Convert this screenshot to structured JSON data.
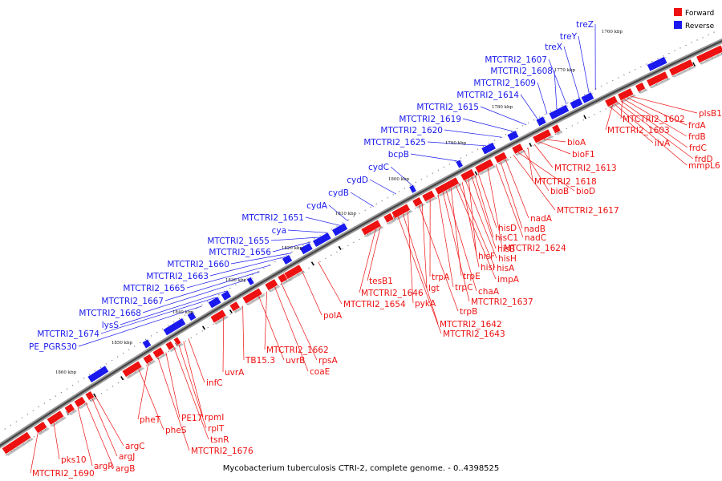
{
  "caption": "Mycobacterium tuberculosis CTRI-2, complete genome. - 0..4398525",
  "legend": [
    {
      "label": "Forward",
      "color": "#ee1111"
    },
    {
      "label": "Reverse",
      "color": "#1a1aee"
    }
  ],
  "colors": {
    "forward": "#ee1111",
    "reverse": "#1a1aee",
    "backbone": "#444444"
  },
  "ruler": [
    "1760 kbp",
    "1770 kbp",
    "1780 kbp",
    "1790 kbp",
    "1800 kbp",
    "1810 kbp",
    "1820 kbp",
    "1830 kbp",
    "1840 kbp",
    "1850 kbp",
    "1860 kbp"
  ],
  "reverse_labels": [
    "treZ",
    "treY",
    "treX",
    "MTCTRI2_1607",
    "MTCTRI2_1608",
    "MTCTRI2_1609",
    "MTCTRI2_1614",
    "MTCTRI2_1615",
    "MTCTRI2_1619",
    "MTCTRI2_1620",
    "MTCTRI2_1625",
    "bcpB",
    "cydC",
    "cydD",
    "cydB",
    "cydA",
    "MTCTRI2_1651",
    "cya",
    "MTCTRI2_1655",
    "MTCTRI2_1656",
    "MTCTRI2_1660",
    "MTCTRI2_1663",
    "MTCTRI2_1665",
    "MTCTRI2_1667",
    "MTCTRI2_1668",
    "lysS",
    "MTCTRI2_1674",
    "PE_PGRS30"
  ],
  "forward_labels": [
    "plsB1",
    "frdA",
    "frdB",
    "frdC",
    "frdD",
    "mmpL6",
    "MTCTRI2_1602",
    "MTCTRI2_1603",
    "ilvA",
    "bioA",
    "bioF1",
    "MTCTRI2_1613",
    "MTCTRI2_1618",
    "bioB",
    "bioD",
    "MTCTRI2_1617",
    "nadA",
    "nadB",
    "nadC",
    "MTCTRI2_1624",
    "hisD",
    "hisC1",
    "hisB",
    "hisF",
    "hisH",
    "hisI",
    "hisA",
    "impA",
    "trpE",
    "chaA",
    "MTCTRI2_1637",
    "trpC",
    "trpA",
    "lgt",
    "trpB",
    "pykA",
    "MTCTRI2_1642",
    "MTCTRI2_1643",
    "tesB1",
    "MTCTRI2_1646",
    "MTCTRI2_1654",
    "polA",
    "rpsA",
    "coaE",
    "MTCTRI2_1662",
    "uvrB",
    "TB15.3",
    "uvrA",
    "infC",
    "rpmI",
    "rplT",
    "tsnR",
    "PE17",
    "MTCTRI2_1676",
    "pheT",
    "pheS",
    "argC",
    "argJ",
    "argB",
    "argR",
    "pks10",
    "MTCTRI2_1690"
  ]
}
